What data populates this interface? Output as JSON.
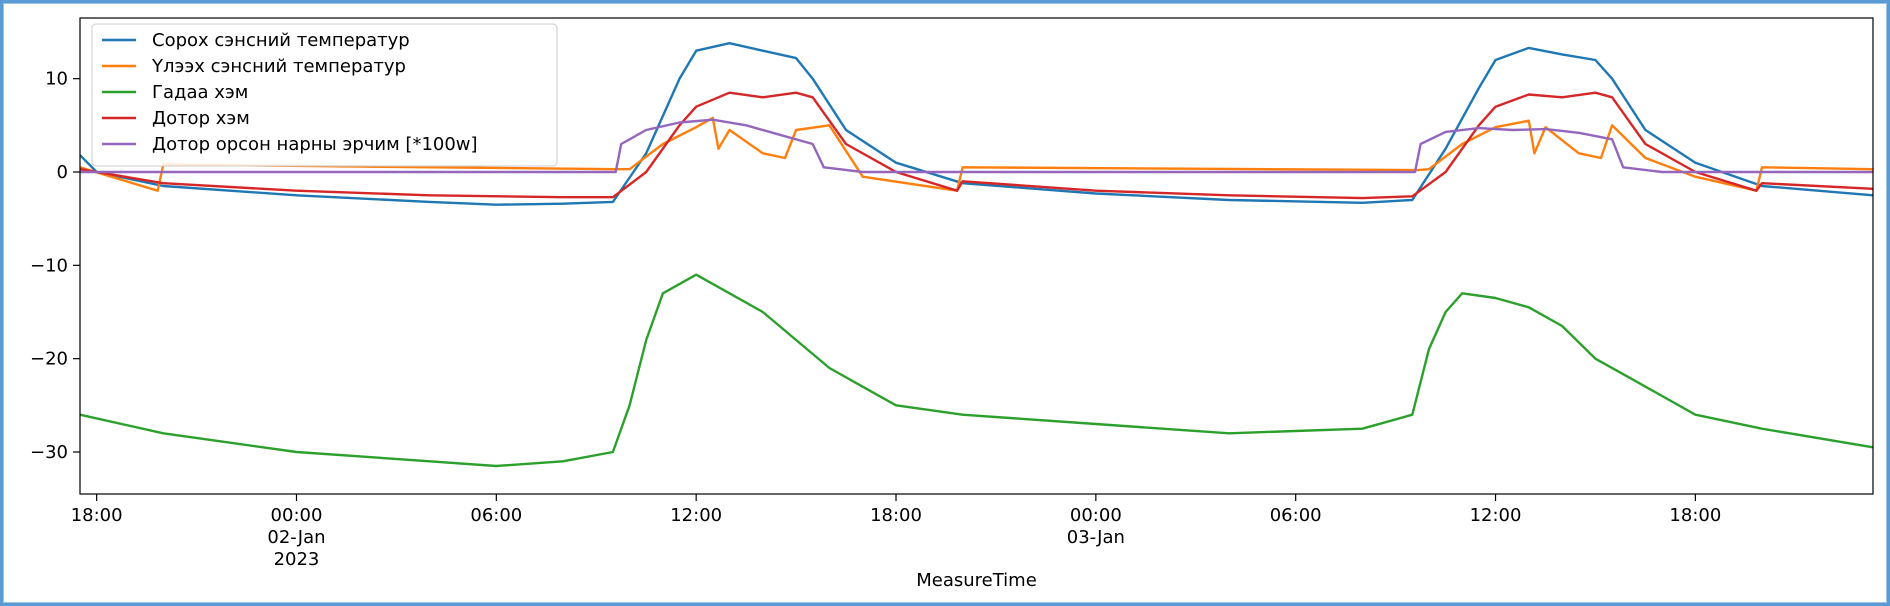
{
  "chart_data": {
    "type": "line",
    "xlabel": "MeasureTime",
    "ylabel": "",
    "x_range": [
      "2023-01-01T17:30",
      "2023-01-03T23:20"
    ],
    "ylim": [
      -34.5,
      16.5
    ],
    "y_ticks": [
      10,
      0,
      -10,
      -20,
      -30
    ],
    "y_tick_labels": [
      "10",
      "0",
      "−10",
      "−20",
      "−30"
    ],
    "x_ticks": [
      {
        "t": "2023-01-01T18:00",
        "label": "18:00",
        "label2": "",
        "label3": ""
      },
      {
        "t": "2023-01-02T00:00",
        "label": "00:00",
        "label2": "02-Jan",
        "label3": "2023"
      },
      {
        "t": "2023-01-02T06:00",
        "label": "06:00",
        "label2": "",
        "label3": ""
      },
      {
        "t": "2023-01-02T12:00",
        "label": "12:00",
        "label2": "",
        "label3": ""
      },
      {
        "t": "2023-01-02T18:00",
        "label": "18:00",
        "label2": "",
        "label3": ""
      },
      {
        "t": "2023-01-03T00:00",
        "label": "00:00",
        "label2": "03-Jan",
        "label3": ""
      },
      {
        "t": "2023-01-03T06:00",
        "label": "06:00",
        "label2": "",
        "label3": ""
      },
      {
        "t": "2023-01-03T12:00",
        "label": "12:00",
        "label2": "",
        "label3": ""
      },
      {
        "t": "2023-01-03T18:00",
        "label": "18:00",
        "label2": "",
        "label3": ""
      }
    ],
    "grid": false,
    "legend_position": "top-left",
    "series": [
      {
        "name": "Сорох сэнсний температур",
        "color": "#1f77b4",
        "x": [
          "2023-01-01T17:30",
          "2023-01-01T18:00",
          "2023-01-01T20:00",
          "2023-01-02T00:00",
          "2023-01-02T04:00",
          "2023-01-02T06:00",
          "2023-01-02T08:00",
          "2023-01-02T09:30",
          "2023-01-02T10:30",
          "2023-01-02T11:30",
          "2023-01-02T12:00",
          "2023-01-02T13:00",
          "2023-01-02T14:00",
          "2023-01-02T15:00",
          "2023-01-02T15:30",
          "2023-01-02T16:30",
          "2023-01-02T18:00",
          "2023-01-02T20:00",
          "2023-01-03T00:00",
          "2023-01-03T04:00",
          "2023-01-03T08:00",
          "2023-01-03T09:30",
          "2023-01-03T10:30",
          "2023-01-03T11:30",
          "2023-01-03T12:00",
          "2023-01-03T13:00",
          "2023-01-03T14:00",
          "2023-01-03T15:00",
          "2023-01-03T15:30",
          "2023-01-03T16:30",
          "2023-01-03T18:00",
          "2023-01-03T20:00",
          "2023-01-03T23:20"
        ],
        "y": [
          1.8,
          0,
          -1.5,
          -2.5,
          -3.2,
          -3.5,
          -3.4,
          -3.2,
          2,
          10,
          13,
          13.8,
          13,
          12.2,
          10,
          4.5,
          1,
          -1.2,
          -2.3,
          -3,
          -3.3,
          -3,
          2.5,
          9,
          12,
          13.3,
          12.6,
          12,
          10,
          4.5,
          1,
          -1.5,
          -2.5
        ]
      },
      {
        "name": "Үлээх сэнсний температур",
        "color": "#ff7f0e",
        "x": [
          "2023-01-01T17:30",
          "2023-01-01T19:50",
          "2023-01-01T20:00",
          "2023-01-02T09:40",
          "2023-01-02T10:00",
          "2023-01-02T11:00",
          "2023-01-02T12:00",
          "2023-01-02T12:30",
          "2023-01-02T12:40",
          "2023-01-02T13:00",
          "2023-01-02T14:00",
          "2023-01-02T14:40",
          "2023-01-02T15:00",
          "2023-01-02T16:00",
          "2023-01-02T17:00",
          "2023-01-02T19:50",
          "2023-01-02T20:00",
          "2023-01-03T09:40",
          "2023-01-03T10:00",
          "2023-01-03T11:00",
          "2023-01-03T12:00",
          "2023-01-03T13:00",
          "2023-01-03T13:10",
          "2023-01-03T13:30",
          "2023-01-03T14:30",
          "2023-01-03T15:10",
          "2023-01-03T15:30",
          "2023-01-03T16:30",
          "2023-01-03T18:00",
          "2023-01-03T19:50",
          "2023-01-03T20:00",
          "2023-01-03T23:20"
        ],
        "y": [
          0.5,
          -2,
          0.8,
          0.3,
          0.3,
          3,
          4.8,
          5.8,
          2.5,
          4.5,
          2,
          1.5,
          4.5,
          5,
          -0.5,
          -2,
          0.5,
          0.2,
          0.3,
          3,
          4.8,
          5.5,
          2,
          4.8,
          2,
          1.5,
          5,
          1.5,
          -0.5,
          -2,
          0.5,
          0.3
        ]
      },
      {
        "name": "Гадаа хэм",
        "color": "#2ca02c",
        "x": [
          "2023-01-01T17:30",
          "2023-01-01T20:00",
          "2023-01-02T00:00",
          "2023-01-02T04:00",
          "2023-01-02T06:00",
          "2023-01-02T08:00",
          "2023-01-02T09:30",
          "2023-01-02T10:00",
          "2023-01-02T10:30",
          "2023-01-02T11:00",
          "2023-01-02T12:00",
          "2023-01-02T13:00",
          "2023-01-02T14:00",
          "2023-01-02T15:00",
          "2023-01-02T16:00",
          "2023-01-02T17:00",
          "2023-01-02T18:00",
          "2023-01-02T20:00",
          "2023-01-03T00:00",
          "2023-01-03T04:00",
          "2023-01-03T08:00",
          "2023-01-03T09:30",
          "2023-01-03T10:00",
          "2023-01-03T10:30",
          "2023-01-03T11:00",
          "2023-01-03T12:00",
          "2023-01-03T13:00",
          "2023-01-03T14:00",
          "2023-01-03T15:00",
          "2023-01-03T16:00",
          "2023-01-03T17:00",
          "2023-01-03T18:00",
          "2023-01-03T20:00",
          "2023-01-03T23:20"
        ],
        "y": [
          -26,
          -28,
          -30,
          -31,
          -31.5,
          -31,
          -30,
          -25,
          -18,
          -13,
          -11,
          -13,
          -15,
          -18,
          -21,
          -23,
          -25,
          -26,
          -27,
          -28,
          -27.5,
          -26,
          -19,
          -15,
          -13,
          -13.5,
          -14.5,
          -16.5,
          -20,
          -22,
          -24,
          -26,
          -27.5,
          -29.5
        ]
      },
      {
        "name": "Дотор хэм",
        "color": "#d62728",
        "x": [
          "2023-01-01T17:30",
          "2023-01-01T20:00",
          "2023-01-02T00:00",
          "2023-01-02T04:00",
          "2023-01-02T08:00",
          "2023-01-02T09:30",
          "2023-01-02T10:30",
          "2023-01-02T11:30",
          "2023-01-02T12:00",
          "2023-01-02T13:00",
          "2023-01-02T14:00",
          "2023-01-02T15:00",
          "2023-01-02T15:30",
          "2023-01-02T16:30",
          "2023-01-02T18:00",
          "2023-01-02T19:50",
          "2023-01-02T20:00",
          "2023-01-03T00:00",
          "2023-01-03T04:00",
          "2023-01-03T08:00",
          "2023-01-03T09:30",
          "2023-01-03T10:30",
          "2023-01-03T11:30",
          "2023-01-03T12:00",
          "2023-01-03T13:00",
          "2023-01-03T14:00",
          "2023-01-03T15:00",
          "2023-01-03T15:30",
          "2023-01-03T16:30",
          "2023-01-03T18:00",
          "2023-01-03T19:50",
          "2023-01-03T20:00",
          "2023-01-03T23:20"
        ],
        "y": [
          0.3,
          -1.2,
          -2,
          -2.5,
          -2.7,
          -2.7,
          0,
          5,
          7,
          8.5,
          8,
          8.5,
          8,
          3,
          0,
          -2,
          -1,
          -2,
          -2.5,
          -2.8,
          -2.6,
          0,
          5,
          7,
          8.3,
          8,
          8.5,
          8,
          3,
          0,
          -2,
          -1.2,
          -1.8
        ]
      },
      {
        "name": "Дотор орсон нарны эрчим [*100w]",
        "color": "#9467bd",
        "x": [
          "2023-01-01T17:30",
          "2023-01-02T09:35",
          "2023-01-02T09:45",
          "2023-01-02T10:30",
          "2023-01-02T11:30",
          "2023-01-02T12:30",
          "2023-01-02T13:30",
          "2023-01-02T14:30",
          "2023-01-02T15:30",
          "2023-01-02T15:50",
          "2023-01-02T17:00",
          "2023-01-03T09:35",
          "2023-01-03T09:45",
          "2023-01-03T10:30",
          "2023-01-03T11:30",
          "2023-01-03T12:30",
          "2023-01-03T13:30",
          "2023-01-03T14:30",
          "2023-01-03T15:30",
          "2023-01-03T15:50",
          "2023-01-03T17:00",
          "2023-01-03T23:20"
        ],
        "y": [
          0,
          0,
          3,
          4.5,
          5.3,
          5.6,
          5,
          4,
          3,
          0.5,
          0,
          0,
          3,
          4.3,
          4.7,
          4.5,
          4.6,
          4.2,
          3.5,
          0.5,
          0,
          0
        ]
      }
    ]
  }
}
